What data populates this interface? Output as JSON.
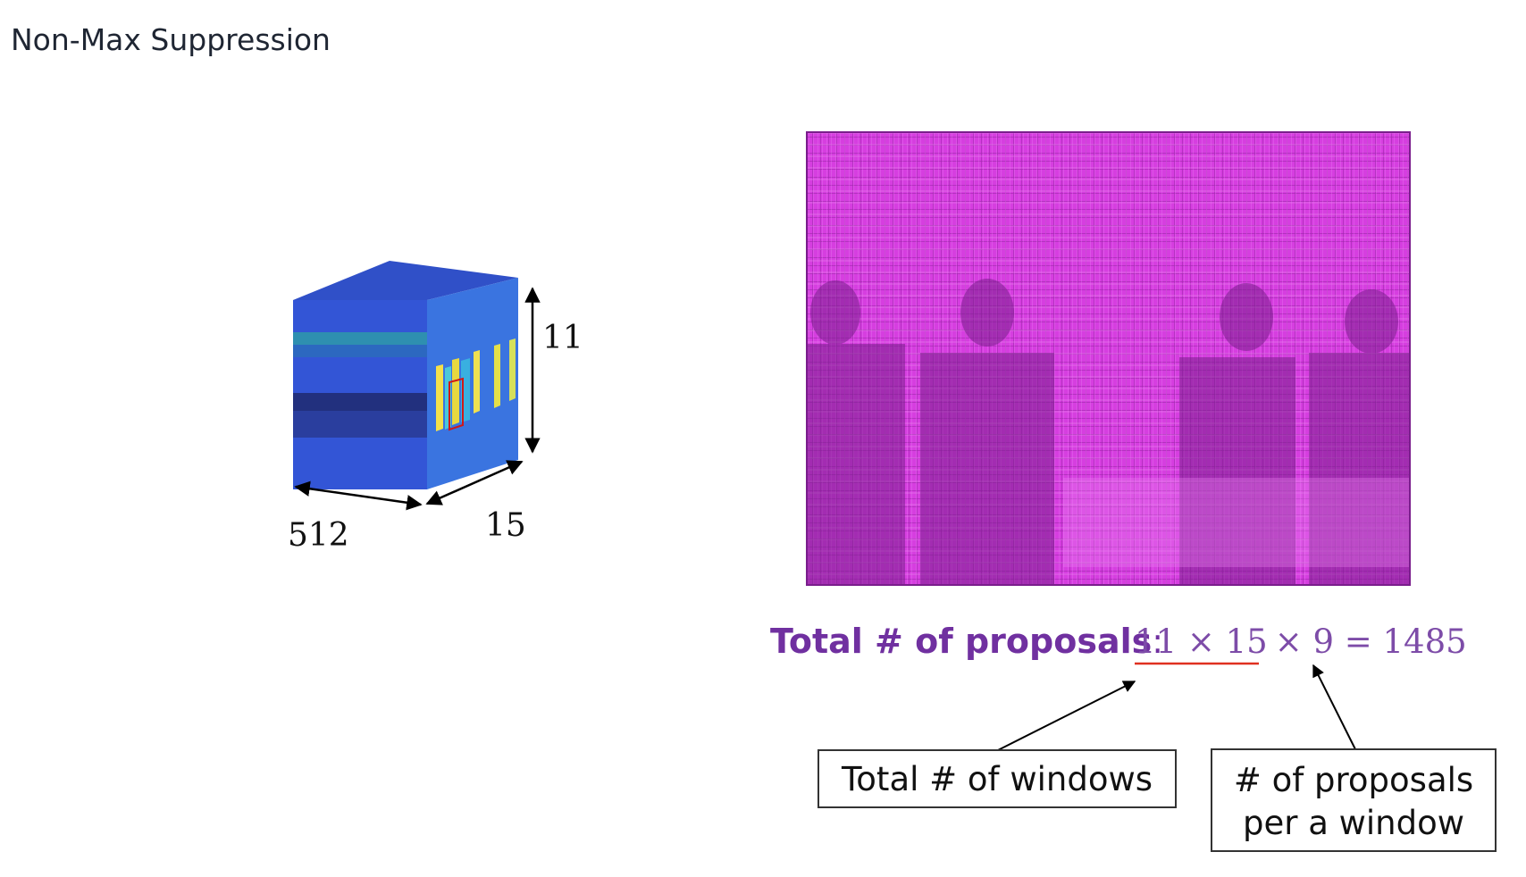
{
  "header": {
    "title": "Non-Max Suppression"
  },
  "cube": {
    "height_label": "11",
    "depth_label": "512",
    "width_label": "15"
  },
  "formula": {
    "label": "Total # of proposals",
    "separator": ":",
    "windows_part": "11 × 15",
    "rest": "× 9 = 1485"
  },
  "boxes": [
    {
      "lines": [
        "Total # of windows"
      ]
    },
    {
      "lines": [
        "# of proposals",
        "per a window"
      ]
    }
  ]
}
